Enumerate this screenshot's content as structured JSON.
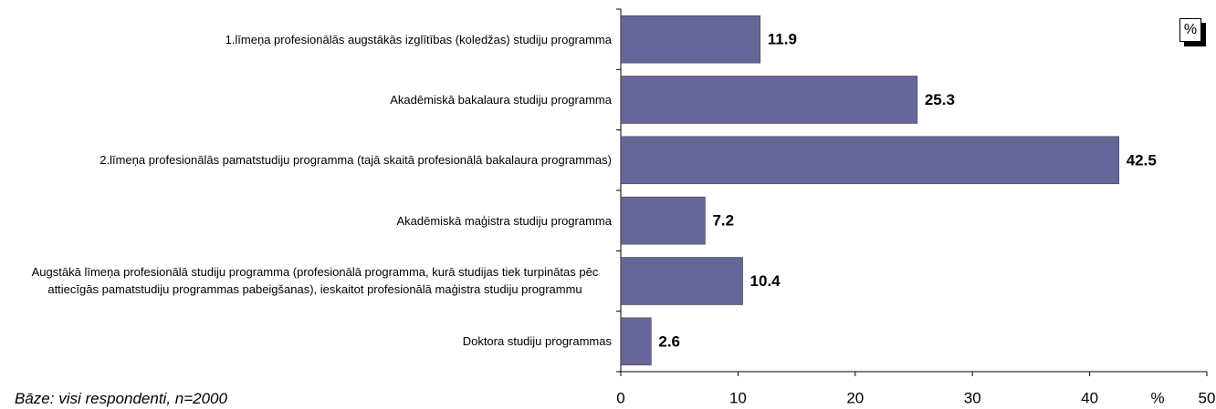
{
  "chart_data": {
    "type": "bar",
    "orientation": "horizontal",
    "categories": [
      "1.līmeņa profesionālās augstākās izglītības (koledžas) studiju programma",
      "Akadēmiskā bakalaura studiju programma",
      "2.līmeņa profesionālās pamatstudiju programma (tajā skaitā profesionālā bakalaura programmas)",
      "Akadēmiskā maģistra studiju programma",
      "Augstākā līmeņa profesionālā studiju programma (profesionālā programma, kurā studijas tiek turpinātas pēc attiecīgās pamatstudiju programmas pabeigšanas), ieskaitot profesionālā maģistra studiju programmu",
      "Doktora studiju programmas"
    ],
    "values": [
      11.9,
      25.3,
      42.5,
      7.2,
      10.4,
      2.6
    ],
    "value_labels": [
      "11.9",
      "25.3",
      "42.5",
      "7.2",
      "10.4",
      "2.6"
    ],
    "color": "#666699",
    "xlim": [
      0,
      50
    ],
    "xticks": [
      0,
      10,
      20,
      30,
      40,
      50
    ],
    "x_label": "%",
    "unit": "%",
    "note": "Bāze: visi respondenti, n=2000"
  }
}
